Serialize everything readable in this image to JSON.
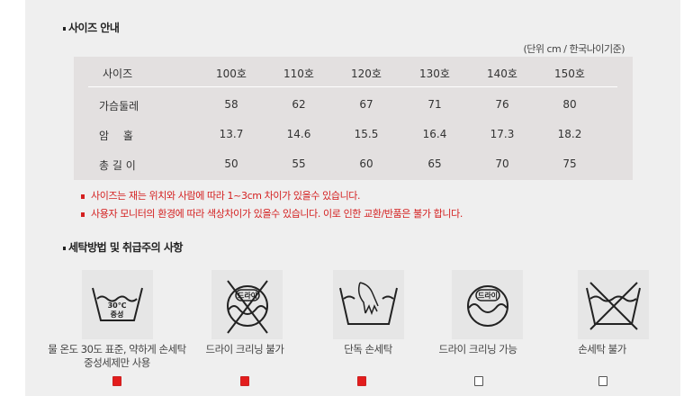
{
  "size_section": {
    "title": "사이즈 안내",
    "unit_note": "(단위 cm / 한국나이기준)",
    "header": [
      "사이즈",
      "100호",
      "110호",
      "120호",
      "130호",
      "140호",
      "150호"
    ],
    "rows": [
      [
        "가슴둘레",
        "58",
        "62",
        "67",
        "71",
        "76",
        "80"
      ],
      [
        "암　 홀",
        "13.7",
        "14.6",
        "15.5",
        "16.4",
        "17.3",
        "18.2"
      ],
      [
        "총 길 이",
        "50",
        "55",
        "60",
        "65",
        "70",
        "75"
      ]
    ],
    "notes": [
      "사이즈는 재는 위치와 사람에 따라 1~3cm 차이가 있을수 있습니다.",
      "사용자 모니터의 환경에 따라 색상차이가 있을수 있습니다. 이로 인한 교환/반품은 불가 합니다."
    ]
  },
  "care_section": {
    "title": "세탁방법 및 취급주의 사항",
    "items": [
      {
        "icon": "wash-30c-neutral-icon",
        "icon_text": [
          "30℃",
          "중성"
        ],
        "label": "물 온도 30도 표준, 약하게 손세탁",
        "label2": "중성세제만 사용",
        "checked": true
      },
      {
        "icon": "no-dry-clean-icon",
        "icon_text": [
          "드라이"
        ],
        "label": "드라이 크리닝 불가",
        "checked": true
      },
      {
        "icon": "hand-wash-icon",
        "label": "단독 손세탁",
        "checked": true
      },
      {
        "icon": "dry-clean-icon",
        "icon_text": [
          "드라이"
        ],
        "label": "드라이 크리닝 가능",
        "checked": false
      },
      {
        "icon": "no-hand-wash-icon",
        "label": "손세탁 불가",
        "checked": false
      }
    ],
    "check_color": "#e31d1d"
  }
}
